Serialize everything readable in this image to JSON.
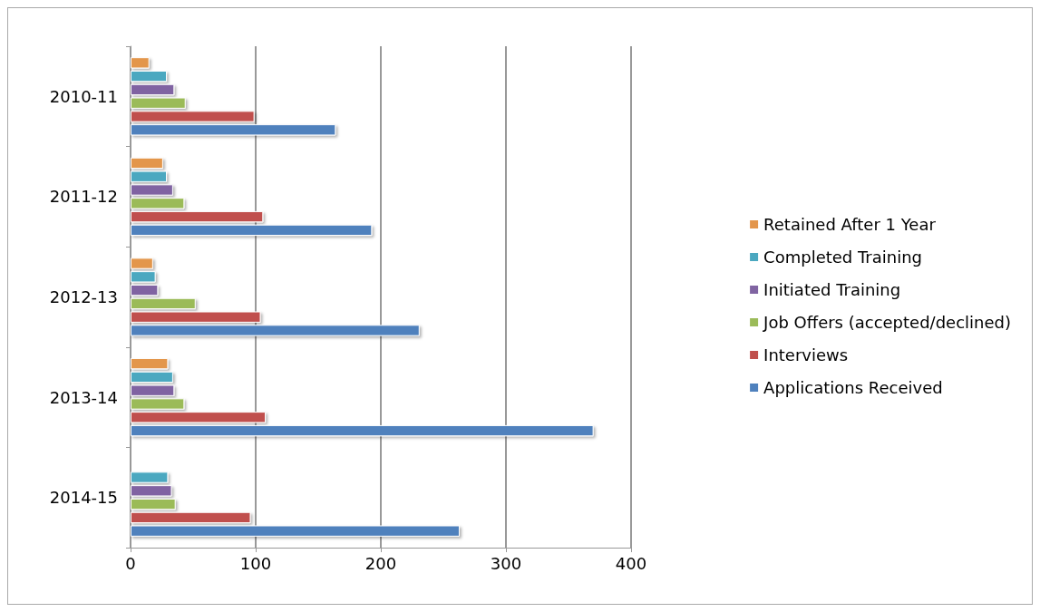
{
  "chart_data": {
    "type": "bar",
    "orientation": "horizontal",
    "categories": [
      "2010-11",
      "2011-12",
      "2012-13",
      "2013-14",
      "2014-15"
    ],
    "series": [
      {
        "name": "Retained After 1 Year",
        "color": "#e3964c",
        "values": [
          15,
          26,
          18,
          30,
          null
        ]
      },
      {
        "name": "Completed Training",
        "color": "#4ba8c0",
        "values": [
          29,
          29,
          20,
          34,
          30
        ]
      },
      {
        "name": "Initiated Training",
        "color": "#8064a2",
        "values": [
          35,
          34,
          22,
          35,
          33
        ]
      },
      {
        "name": "Job Offers (accepted/declined)",
        "color": "#9bbb59",
        "values": [
          44,
          43,
          52,
          43,
          36
        ]
      },
      {
        "name": "Interviews",
        "color": "#c0504d",
        "values": [
          99,
          106,
          104,
          108,
          96
        ]
      },
      {
        "name": "Applications Received",
        "color": "#4f81bd",
        "values": [
          164,
          193,
          231,
          370,
          263
        ]
      }
    ],
    "xlim": [
      0,
      400
    ],
    "xticks": [
      0,
      100,
      200,
      300,
      400
    ],
    "grid": "x",
    "legend": "right"
  }
}
